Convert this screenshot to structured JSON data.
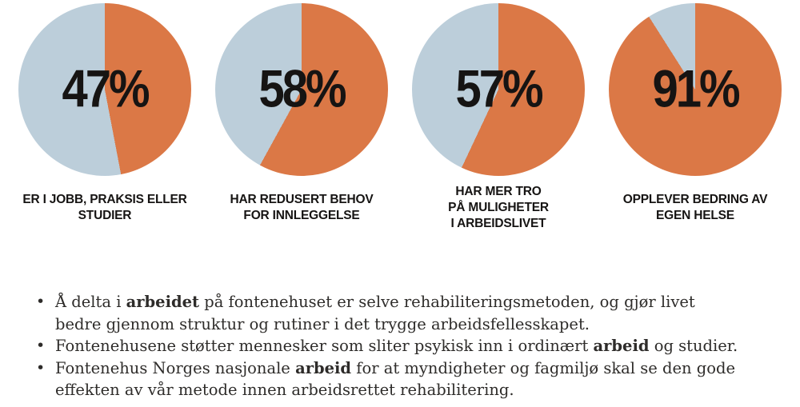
{
  "colors": {
    "slice_main": "#DB7846",
    "slice_rest": "#BCCEDA",
    "heading_text": "#161413",
    "body_text": "#2E2C2A",
    "background": "#FFFFFF"
  },
  "chart_data": [
    {
      "type": "pie",
      "center_label": "47%",
      "title": "ER I JOBB, PRAKSIS ELLER STUDIER",
      "title_lines": [
        "ER I JOBB, PRAKSIS ELLER",
        "STUDIER"
      ],
      "start_angle_deg": 0,
      "direction": "clockwise",
      "slices": [
        {
          "label": "highlighted",
          "value": 47,
          "color": "#DB7846"
        },
        {
          "label": "remainder",
          "value": 53,
          "color": "#BCCEDA"
        }
      ]
    },
    {
      "type": "pie",
      "center_label": "58%",
      "title": "HAR REDUSERT BEHOV FOR INNLEGGELSE",
      "title_lines": [
        "HAR REDUSERT BEHOV",
        "FOR INNLEGGELSE"
      ],
      "start_angle_deg": 0,
      "direction": "clockwise",
      "slices": [
        {
          "label": "highlighted",
          "value": 58,
          "color": "#DB7846"
        },
        {
          "label": "remainder",
          "value": 42,
          "color": "#BCCEDA"
        }
      ]
    },
    {
      "type": "pie",
      "center_label": "57%",
      "title": "HAR MER TRO PÅ MULIGHETER I ARBEIDSLIVET",
      "title_lines": [
        "HAR MER TRO",
        "PÅ MULIGHETER",
        "I ARBEIDSLIVET"
      ],
      "start_angle_deg": 0,
      "direction": "clockwise",
      "slices": [
        {
          "label": "highlighted",
          "value": 57,
          "color": "#DB7846"
        },
        {
          "label": "remainder",
          "value": 43,
          "color": "#BCCEDA"
        }
      ]
    },
    {
      "type": "pie",
      "center_label": "91%",
      "title": "OPPLEVER BEDRING AV EGEN HELSE",
      "title_lines": [
        "OPPLEVER BEDRING AV",
        "EGEN HELSE"
      ],
      "start_angle_deg": 0,
      "direction": "clockwise",
      "slices": [
        {
          "label": "highlighted",
          "value": 91,
          "color": "#DB7846"
        },
        {
          "label": "remainder",
          "value": 9,
          "color": "#BCCEDA"
        }
      ]
    }
  ],
  "bullets": [
    {
      "marker": "•",
      "segments": [
        {
          "text": "Å delta i ",
          "bold": false
        },
        {
          "text": "arbeidet",
          "bold": true
        },
        {
          "text": " på fontenehuset er selve rehabiliteringsmetoden, og gjør livet bedre gjennom struktur og rutiner i det trygge arbeidsfellesskapet.",
          "bold": false
        }
      ]
    },
    {
      "marker": "•",
      "segments": [
        {
          "text": "Fontenehusene støtter mennesker som sliter psykisk inn i ordinært ",
          "bold": false
        },
        {
          "text": "arbeid",
          "bold": true
        },
        {
          "text": " og studier.",
          "bold": false
        }
      ]
    },
    {
      "marker": "•",
      "segments": [
        {
          "text": "Fontenehus Norges nasjonale ",
          "bold": false
        },
        {
          "text": "arbeid",
          "bold": true
        },
        {
          "text": " for at myndigheter og fagmiljø skal se den gode effekten av vår metode innen arbeidsrettet rehabilitering.",
          "bold": false
        }
      ]
    }
  ]
}
